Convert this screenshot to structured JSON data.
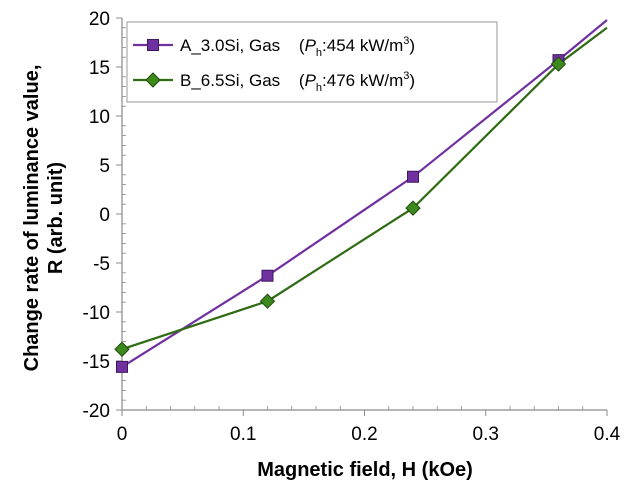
{
  "chart_data": {
    "type": "line",
    "xlabel": "Magnetic field, H (kOe)",
    "ylabel_line1": "Change rate of luminance value,",
    "ylabel_line2": "R (arb. unit)",
    "xlim": [
      0,
      0.4
    ],
    "ylim": [
      -20,
      20
    ],
    "x_ticks": [
      "0",
      "0.1",
      "0.2",
      "0.3",
      "0.4"
    ],
    "y_ticks": [
      "20",
      "15",
      "10",
      "5",
      "0",
      "-5",
      "-10",
      "-15",
      "-20"
    ],
    "grid": false,
    "legend_placement": "top-left",
    "series": [
      {
        "name": "A_3.0Si, Gas",
        "legend_param": "P",
        "legend_param_sub": "h",
        "legend_value": ":454 kW/m",
        "legend_sup": "3",
        "legend_close": ")",
        "legend_open": "(",
        "marker": "square",
        "color": "#7030a0",
        "marker_fill": "#7030a0",
        "x": [
          0,
          0.12,
          0.24,
          0.36
        ],
        "y": [
          -15.6,
          -6.3,
          3.8,
          15.7
        ],
        "fit_endpoint": [
          0.4,
          19.8
        ]
      },
      {
        "name": "B_6.5Si, Gas",
        "legend_param": "P",
        "legend_param_sub": "h",
        "legend_value": ":476 kW/m",
        "legend_sup": "3",
        "legend_close": ")",
        "legend_open": "(",
        "marker": "diamond",
        "color": "#2e6b12",
        "marker_fill": "#3c8a1c",
        "x": [
          0,
          0.12,
          0.24,
          0.36
        ],
        "y": [
          -13.8,
          -8.9,
          0.6,
          15.3
        ],
        "fit_endpoint": [
          0.4,
          19.0
        ]
      }
    ]
  }
}
